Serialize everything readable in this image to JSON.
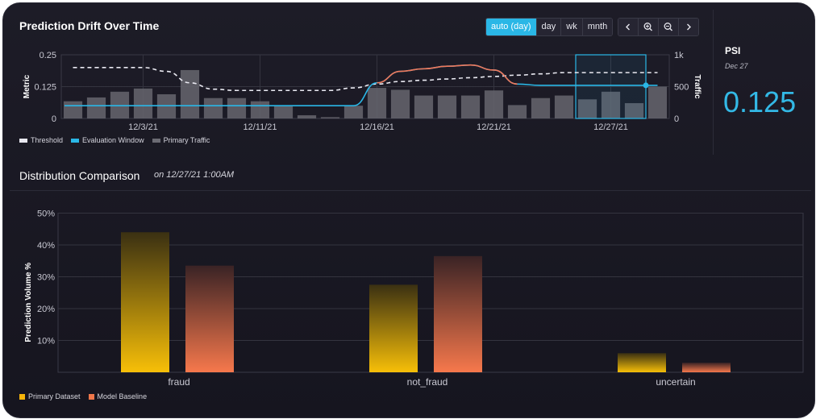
{
  "drift": {
    "title": "Prediction Drift Over Time",
    "controls": {
      "granularity": [
        "auto (day)",
        "day",
        "wk",
        "mnth"
      ],
      "active_granularity": "auto (day)",
      "nav_icons": [
        "chevron-left-icon",
        "zoom-in-icon",
        "zoom-out-icon",
        "chevron-right-icon"
      ]
    },
    "legend": [
      {
        "label": "Threshold",
        "color": "#e8e8f0"
      },
      {
        "label": "Evaluation Window",
        "color": "#2ab7e6"
      },
      {
        "label": "Primary Traffic",
        "color": "#6b6b73"
      }
    ]
  },
  "psi": {
    "label": "PSI",
    "date": "Dec 27",
    "value": "0.125"
  },
  "distribution": {
    "title": "Distribution Comparison",
    "subtitle": "on 12/27/21 1:00AM",
    "legend": [
      {
        "label": "Primary Dataset",
        "color": "#f5b40a"
      },
      {
        "label": "Model Baseline",
        "color": "#f0774a"
      }
    ]
  },
  "chart_data": [
    {
      "type": "line",
      "title": "Prediction Drift Over Time",
      "ylabel": "Metric",
      "y2label": "Traffic",
      "ylim": [
        0,
        0.25
      ],
      "y2lim": [
        0,
        1000
      ],
      "yticks": [
        "0",
        "0.125",
        "0.25"
      ],
      "y2ticks": [
        "0",
        "500",
        "1k"
      ],
      "xticks": [
        "12/3/21",
        "12/11/21",
        "12/16/21",
        "12/21/21",
        "12/27/21"
      ],
      "grid": true,
      "legend_position": "bottom-left",
      "traffic": [
        270,
        330,
        420,
        470,
        380,
        760,
        320,
        320,
        270,
        190,
        50,
        20,
        200,
        480,
        450,
        360,
        360,
        360,
        440,
        210,
        320,
        360,
        300,
        420,
        240,
        500
      ],
      "threshold": [
        0.2,
        0.2,
        0.2,
        0.2,
        0.185,
        0.14,
        0.115,
        0.11,
        0.11,
        0.11,
        0.11,
        0.11,
        0.12,
        0.135,
        0.145,
        0.15,
        0.155,
        0.16,
        0.165,
        0.17,
        0.175,
        0.18,
        0.18,
        0.18,
        0.18,
        0.18
      ],
      "metric": [
        0.05,
        0.05,
        0.05,
        0.05,
        0.05,
        0.05,
        0.05,
        0.05,
        0.05,
        0.05,
        0.05,
        0.05,
        0.05,
        0.14,
        0.185,
        0.195,
        0.205,
        0.21,
        0.19,
        0.135,
        0.13,
        0.13,
        0.13,
        0.13,
        0.13,
        0.13
      ],
      "drift_segment_index": [
        12,
        19
      ],
      "evaluation_window_index": [
        22,
        24
      ],
      "evaluation_point": {
        "index": 24,
        "value": 0.13
      }
    },
    {
      "type": "bar",
      "title": "Distribution Comparison",
      "ylabel": "Prediction Volume %",
      "categories": [
        "fraud",
        "not_fraud",
        "uncertain"
      ],
      "yticks": [
        "10%",
        "20%",
        "30%",
        "40%",
        "50%"
      ],
      "ylim": [
        0,
        50
      ],
      "grid": true,
      "legend_position": "bottom-left",
      "series": [
        {
          "name": "Primary Dataset",
          "values": [
            44,
            27.5,
            6
          ]
        },
        {
          "name": "Model Baseline",
          "values": [
            33.5,
            36.5,
            3
          ]
        }
      ]
    }
  ]
}
